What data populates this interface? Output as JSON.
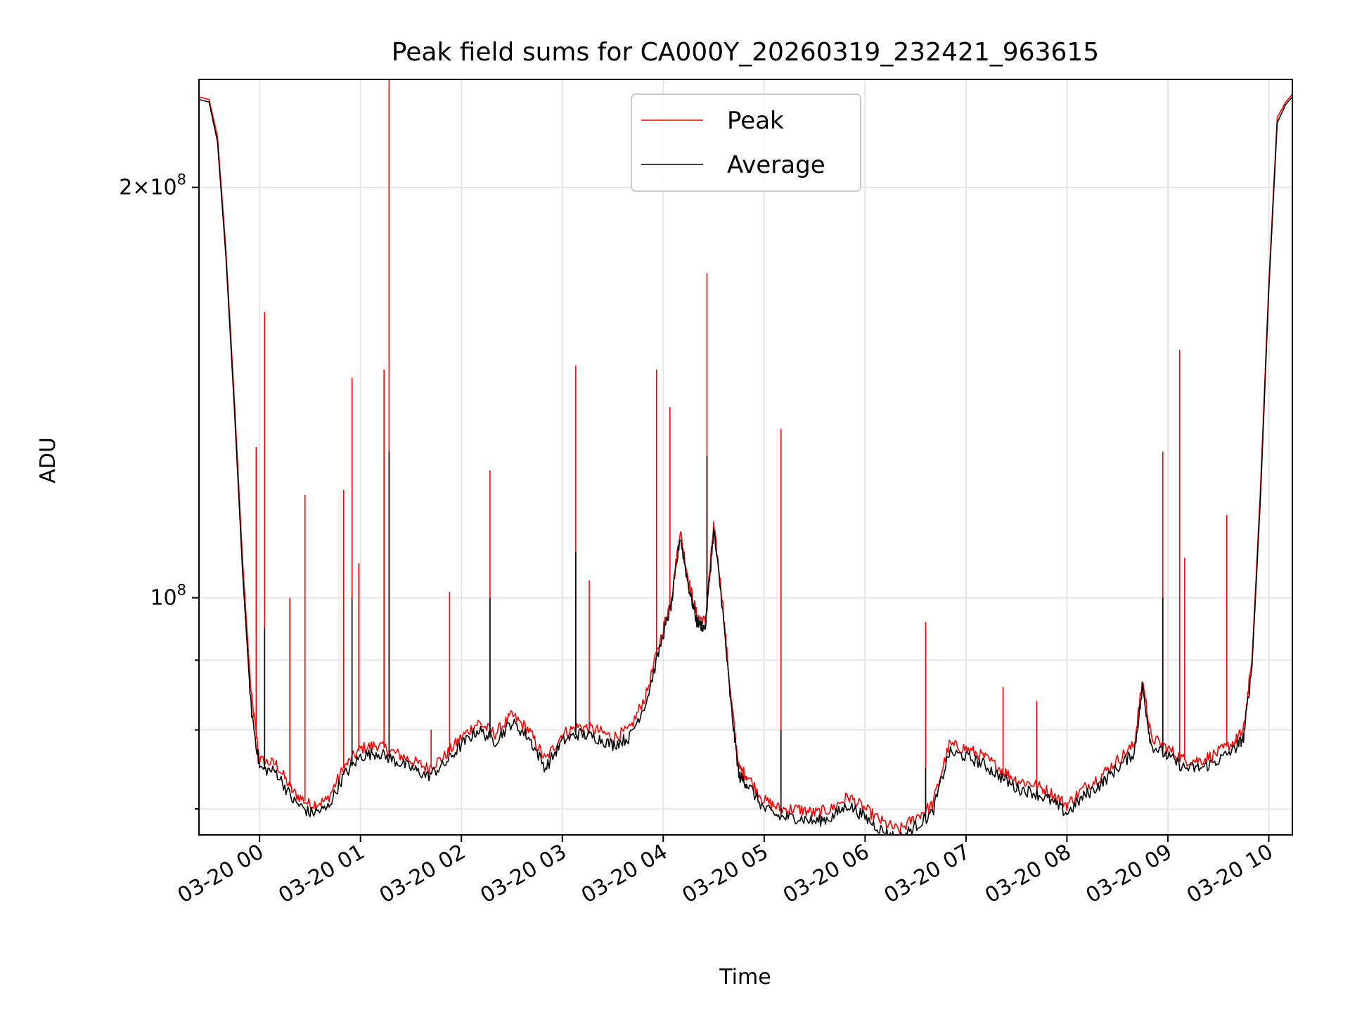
{
  "chart_data": {
    "type": "line",
    "title": "Peak field sums for CA000Y_20260319_232421_963615",
    "xlabel": "Time",
    "ylabel": "ADU",
    "y_scale": "log",
    "ylim": [
      67000000,
      240000000
    ],
    "xlim": [
      "2026-03-19 23:24",
      "2026-03-20 10:14"
    ],
    "grid": true,
    "legend_position": "top-center",
    "x_tick_labels": [
      "03-20 00",
      "03-20 01",
      "03-20 02",
      "03-20 03",
      "03-20 04",
      "03-20 05",
      "03-20 06",
      "03-20 07",
      "03-20 08",
      "03-20 09",
      "03-20 10"
    ],
    "x_ticks": [
      "2026-03-20 00:00",
      "2026-03-20 01:00",
      "2026-03-20 02:00",
      "2026-03-20 03:00",
      "2026-03-20 04:00",
      "2026-03-20 05:00",
      "2026-03-20 06:00",
      "2026-03-20 07:00",
      "2026-03-20 08:00",
      "2026-03-20 09:00",
      "2026-03-20 10:00"
    ],
    "y_tick_labels": [
      {
        "value": 100000000,
        "base": "10",
        "exp": "8"
      },
      {
        "value": 200000000,
        "base": "2×10",
        "exp": "8"
      }
    ],
    "y_minor_ticks": [
      70000000,
      80000000,
      90000000
    ],
    "x": [
      "2026-03-19 23:24",
      "2026-03-19 23:30",
      "2026-03-19 23:35",
      "2026-03-19 23:40",
      "2026-03-19 23:45",
      "2026-03-19 23:50",
      "2026-03-19 23:55",
      "2026-03-20 00:00",
      "2026-03-20 00:10",
      "2026-03-20 00:20",
      "2026-03-20 00:30",
      "2026-03-20 00:40",
      "2026-03-20 00:50",
      "2026-03-20 01:00",
      "2026-03-20 01:10",
      "2026-03-20 01:20",
      "2026-03-20 01:30",
      "2026-03-20 01:40",
      "2026-03-20 01:50",
      "2026-03-20 02:00",
      "2026-03-20 02:10",
      "2026-03-20 02:20",
      "2026-03-20 02:30",
      "2026-03-20 02:40",
      "2026-03-20 02:50",
      "2026-03-20 03:00",
      "2026-03-20 03:10",
      "2026-03-20 03:20",
      "2026-03-20 03:30",
      "2026-03-20 03:40",
      "2026-03-20 03:50",
      "2026-03-20 04:00",
      "2026-03-20 04:05",
      "2026-03-20 04:10",
      "2026-03-20 04:15",
      "2026-03-20 04:20",
      "2026-03-20 04:25",
      "2026-03-20 04:30",
      "2026-03-20 04:35",
      "2026-03-20 04:40",
      "2026-03-20 04:45",
      "2026-03-20 04:50",
      "2026-03-20 05:00",
      "2026-03-20 05:10",
      "2026-03-20 05:20",
      "2026-03-20 05:30",
      "2026-03-20 05:40",
      "2026-03-20 05:50",
      "2026-03-20 06:00",
      "2026-03-20 06:10",
      "2026-03-20 06:20",
      "2026-03-20 06:30",
      "2026-03-20 06:40",
      "2026-03-20 06:50",
      "2026-03-20 07:00",
      "2026-03-20 07:10",
      "2026-03-20 07:20",
      "2026-03-20 07:30",
      "2026-03-20 07:40",
      "2026-03-20 07:50",
      "2026-03-20 08:00",
      "2026-03-20 08:10",
      "2026-03-20 08:20",
      "2026-03-20 08:30",
      "2026-03-20 08:40",
      "2026-03-20 08:45",
      "2026-03-20 08:50",
      "2026-03-20 09:00",
      "2026-03-20 09:10",
      "2026-03-20 09:20",
      "2026-03-20 09:30",
      "2026-03-20 09:40",
      "2026-03-20 09:45",
      "2026-03-20 09:50",
      "2026-03-20 09:55",
      "2026-03-20 10:00",
      "2026-03-20 10:05",
      "2026-03-20 10:10",
      "2026-03-20 10:14"
    ],
    "series": [
      {
        "name": "Peak",
        "color": "#ff0000",
        "values": [
          233000000,
          232000000,
          218000000,
          180000000,
          140000000,
          106000000,
          85000000,
          76000000,
          75500000,
          72000000,
          70500000,
          71000000,
          75000000,
          77500000,
          78000000,
          77000000,
          76000000,
          75000000,
          76500000,
          79000000,
          81000000,
          79500000,
          82000000,
          80000000,
          76000000,
          79500000,
          80500000,
          80000000,
          79000000,
          80000000,
          85000000,
          95000000,
          100000000,
          112000000,
          103000000,
          97000000,
          96000000,
          113000000,
          100000000,
          85000000,
          75000000,
          74000000,
          71000000,
          70000000,
          70000000,
          69500000,
          70000000,
          71500000,
          70000000,
          68500000,
          67500000,
          69000000,
          70500000,
          78000000,
          77500000,
          76500000,
          75000000,
          73500000,
          73000000,
          72000000,
          70500000,
          72500000,
          74000000,
          76000000,
          78000000,
          87000000,
          79000000,
          77500000,
          76000000,
          76000000,
          77000000,
          78500000,
          80000000,
          90000000,
          120000000,
          170000000,
          225000000,
          231000000,
          234000000
        ],
        "spikes": [
          {
            "x": "2026-03-19 23:58",
            "y": 129000000
          },
          {
            "x": "2026-03-20 00:03",
            "y": 162000000
          },
          {
            "x": "2026-03-20 00:18",
            "y": 100000000
          },
          {
            "x": "2026-03-20 00:27",
            "y": 119000000
          },
          {
            "x": "2026-03-20 00:50",
            "y": 120000000
          },
          {
            "x": "2026-03-20 00:55",
            "y": 145000000
          },
          {
            "x": "2026-03-20 00:59",
            "y": 106000000
          },
          {
            "x": "2026-03-20 01:14",
            "y": 147000000
          },
          {
            "x": "2026-03-20 01:17",
            "y": 240000000
          },
          {
            "x": "2026-03-20 01:42",
            "y": 80000000
          },
          {
            "x": "2026-03-20 01:53",
            "y": 101000000
          },
          {
            "x": "2026-03-20 02:17",
            "y": 124000000
          },
          {
            "x": "2026-03-20 03:08",
            "y": 148000000
          },
          {
            "x": "2026-03-20 03:16",
            "y": 103000000
          },
          {
            "x": "2026-03-20 03:56",
            "y": 147000000
          },
          {
            "x": "2026-03-20 04:04",
            "y": 138000000
          },
          {
            "x": "2026-03-20 04:26",
            "y": 173000000
          },
          {
            "x": "2026-03-20 05:10",
            "y": 133000000
          },
          {
            "x": "2026-03-20 06:36",
            "y": 96000000
          },
          {
            "x": "2026-03-20 07:22",
            "y": 86000000
          },
          {
            "x": "2026-03-20 07:42",
            "y": 84000000
          },
          {
            "x": "2026-03-20 08:57",
            "y": 128000000
          },
          {
            "x": "2026-03-20 09:07",
            "y": 152000000
          },
          {
            "x": "2026-03-20 09:10",
            "y": 107000000
          },
          {
            "x": "2026-03-20 09:35",
            "y": 115000000
          }
        ]
      },
      {
        "name": "Average",
        "color": "#000000",
        "values": [
          232000000,
          231000000,
          216000000,
          178000000,
          138000000,
          104000000,
          83000000,
          75000000,
          74500000,
          71000000,
          69500000,
          70000000,
          74000000,
          76500000,
          77000000,
          76000000,
          75000000,
          74000000,
          75500000,
          78000000,
          80000000,
          78500000,
          81000000,
          79000000,
          75000000,
          78500000,
          79500000,
          79000000,
          78000000,
          79000000,
          84000000,
          94000000,
          99000000,
          111000000,
          102000000,
          96000000,
          95000000,
          112000000,
          99000000,
          84000000,
          74000000,
          73000000,
          70000000,
          69000000,
          69000000,
          68500000,
          69000000,
          70500000,
          69000000,
          67500000,
          66500000,
          68000000,
          69500000,
          77000000,
          76500000,
          75500000,
          74000000,
          72500000,
          72000000,
          71000000,
          69500000,
          71500000,
          73000000,
          75000000,
          77000000,
          86000000,
          78000000,
          76500000,
          75000000,
          75000000,
          76000000,
          77500000,
          79000000,
          89000000,
          118000000,
          168000000,
          223000000,
          230000000,
          233000000
        ],
        "spikes": [
          {
            "x": "2026-03-20 00:03",
            "y": 95000000
          },
          {
            "x": "2026-03-20 00:55",
            "y": 100000000
          },
          {
            "x": "2026-03-20 01:17",
            "y": 128000000
          },
          {
            "x": "2026-03-20 02:17",
            "y": 100000000
          },
          {
            "x": "2026-03-20 03:08",
            "y": 108000000
          },
          {
            "x": "2026-03-20 04:26",
            "y": 127000000
          },
          {
            "x": "2026-03-20 05:10",
            "y": 80000000
          },
          {
            "x": "2026-03-20 06:36",
            "y": 75000000
          },
          {
            "x": "2026-03-20 08:57",
            "y": 100000000
          }
        ]
      }
    ]
  }
}
